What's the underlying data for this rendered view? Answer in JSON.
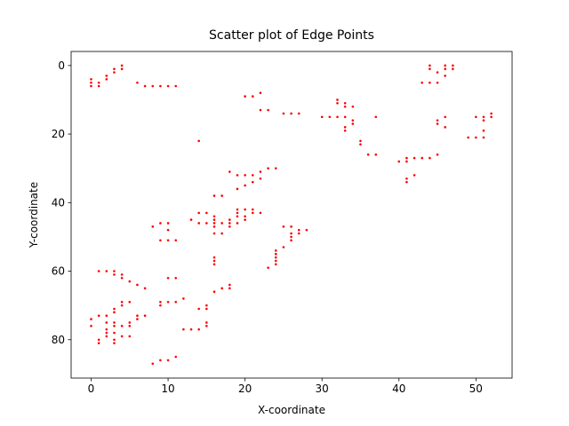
{
  "chart_data": {
    "type": "scatter",
    "title": "Scatter plot of Edge Points",
    "x_label": "X-coordinate",
    "y_label": "Y-coordinate",
    "color": "#ff0000",
    "y_inverted": true,
    "xlim": [
      -2.6,
      54.7
    ],
    "ylim": [
      91.2,
      -4.1
    ],
    "xticks": [
      0,
      10,
      20,
      30,
      40,
      50
    ],
    "yticks": [
      0,
      20,
      40,
      60,
      80
    ],
    "x": [
      0,
      0,
      0,
      1,
      1,
      2,
      2,
      3,
      3,
      4,
      4,
      6,
      7,
      8,
      9,
      10,
      11,
      14,
      20,
      21,
      22,
      22,
      23,
      25,
      26,
      27,
      30,
      31,
      32,
      32,
      32,
      33,
      33,
      34,
      33,
      33,
      33,
      34,
      34,
      35,
      35,
      36,
      37,
      37,
      40,
      41,
      41,
      42,
      43,
      44,
      45,
      41,
      41,
      42,
      44,
      44,
      45,
      46,
      46,
      47,
      47,
      43,
      44,
      45,
      46,
      45,
      45,
      46,
      46,
      49,
      50,
      50,
      51,
      51,
      51,
      51,
      52,
      52,
      18,
      19,
      20,
      21,
      22,
      23,
      24,
      21,
      22,
      19,
      20,
      16,
      17,
      13,
      14,
      15,
      14,
      15,
      16,
      16,
      16,
      16,
      17,
      18,
      18,
      18,
      19,
      19,
      19,
      19,
      20,
      20,
      20,
      21,
      21,
      22,
      16,
      17,
      16,
      16,
      16,
      8,
      9,
      10,
      10,
      9,
      10,
      11,
      25,
      26,
      26,
      26,
      26,
      27,
      27,
      28,
      25,
      24,
      24,
      24,
      24,
      24,
      23,
      1,
      2,
      3,
      3,
      4,
      4,
      5,
      6,
      7,
      10,
      11,
      10,
      11,
      12,
      9,
      9,
      16,
      17,
      18,
      18,
      15,
      15,
      14,
      15,
      15,
      12,
      13,
      14,
      0,
      0,
      1,
      1,
      1,
      2,
      2,
      2,
      2,
      2,
      3,
      3,
      3,
      3,
      3,
      3,
      3,
      4,
      4,
      4,
      4,
      5,
      5,
      5,
      5,
      6,
      6,
      7,
      8,
      9,
      10,
      11
    ],
    "y": [
      4,
      5,
      6,
      5,
      6,
      4,
      3,
      2,
      1,
      1,
      0,
      5,
      6,
      6,
      6,
      6,
      6,
      22,
      9,
      9,
      8,
      13,
      13,
      14,
      14,
      14,
      15,
      15,
      15,
      10,
      11,
      11,
      12,
      12,
      15,
      18,
      19,
      16,
      17,
      22,
      23,
      26,
      26,
      15,
      28,
      27,
      28,
      27,
      27,
      27,
      26,
      33,
      34,
      32,
      0,
      1,
      2,
      1,
      0,
      0,
      1,
      5,
      5,
      5,
      3,
      16,
      17,
      15,
      18,
      21,
      21,
      15,
      15,
      16,
      21,
      19,
      14,
      15,
      31,
      32,
      32,
      32,
      31,
      30,
      30,
      34,
      33,
      36,
      35,
      38,
      38,
      45,
      43,
      43,
      46,
      46,
      44,
      45,
      46,
      47,
      46,
      45,
      46,
      47,
      42,
      43,
      44,
      46,
      42,
      44,
      45,
      42,
      43,
      43,
      49,
      49,
      56,
      57,
      58,
      47,
      46,
      46,
      48,
      51,
      51,
      51,
      47,
      47,
      49,
      50,
      51,
      48,
      49,
      48,
      53,
      54,
      55,
      56,
      57,
      58,
      59,
      60,
      60,
      60,
      61,
      61,
      62,
      63,
      64,
      65,
      62,
      62,
      69,
      69,
      68,
      69,
      70,
      66,
      65,
      64,
      65,
      70,
      71,
      71,
      75,
      76,
      77,
      77,
      77,
      74,
      76,
      73,
      80,
      81,
      73,
      75,
      77,
      78,
      79,
      71,
      72,
      75,
      76,
      78,
      80,
      81,
      69,
      70,
      76,
      79,
      69,
      75,
      76,
      79,
      73,
      74,
      73,
      87,
      86,
      86,
      85
    ]
  }
}
